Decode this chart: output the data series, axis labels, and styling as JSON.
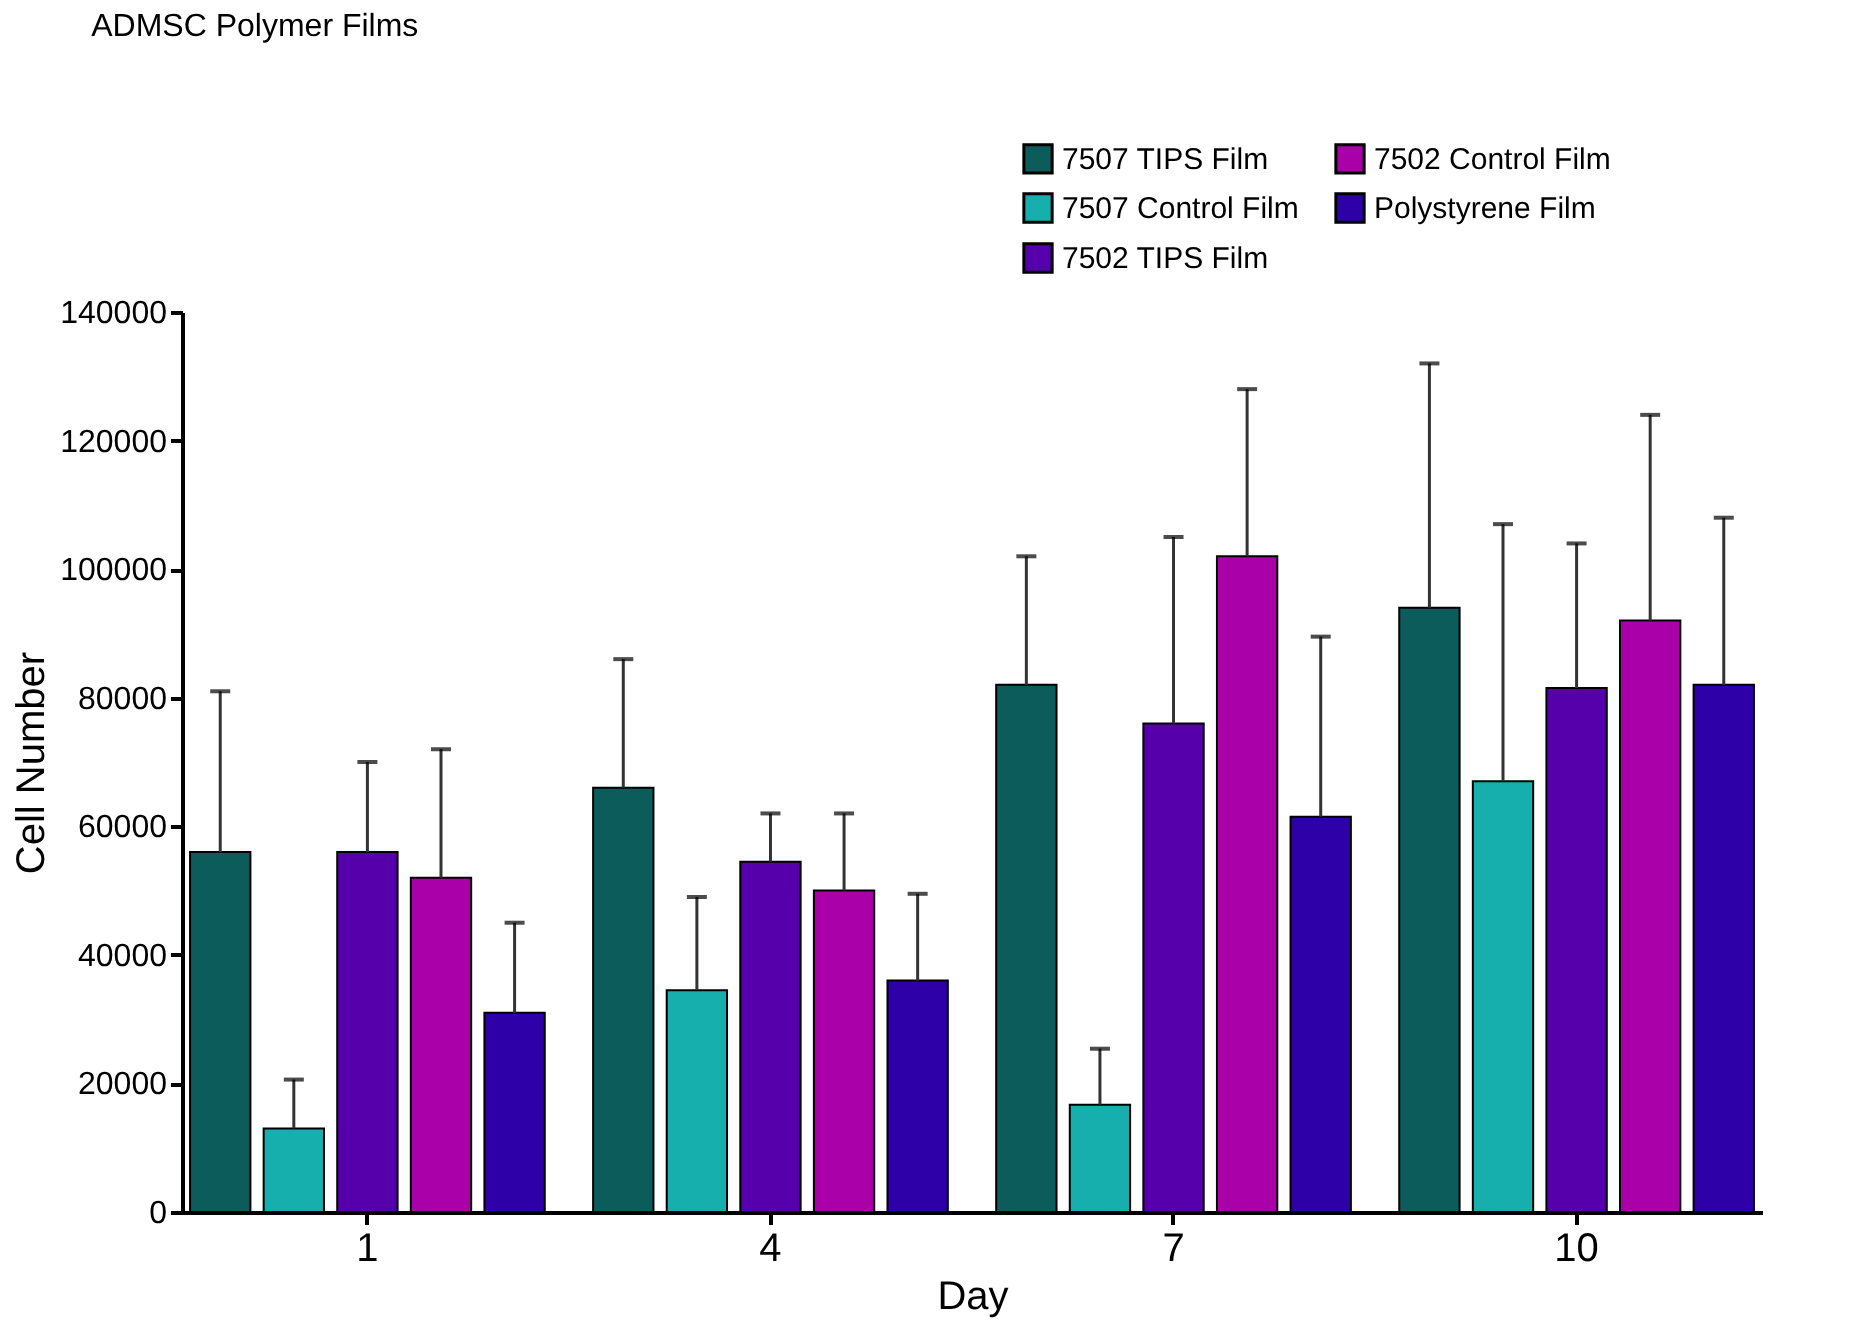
{
  "chart_data": {
    "type": "bar",
    "title": "ADMSC Polymer Films",
    "xlabel": "Day",
    "ylabel": "Cell Number",
    "categories": [
      "1",
      "4",
      "7",
      "10"
    ],
    "series": [
      {
        "name": "7507 TIPS Film",
        "color": "#0d5c5c",
        "values": [
          56000,
          66000,
          82000,
          94000
        ],
        "errors": [
          [
            56000,
            81000
          ],
          [
            66000,
            86000
          ],
          [
            82000,
            102000
          ],
          [
            94000,
            132000
          ]
        ]
      },
      {
        "name": "7507 Control Film",
        "color": "#17aeae",
        "values": [
          13000,
          34500,
          16700,
          67000
        ],
        "errors": [
          [
            13000,
            20600
          ],
          [
            34500,
            49000
          ],
          [
            16700,
            25400
          ],
          [
            67000,
            107000
          ]
        ]
      },
      {
        "name": "7502 TIPS Film",
        "color": "#5500aa",
        "values": [
          56000,
          54500,
          76000,
          81500
        ],
        "errors": [
          [
            56000,
            70000
          ],
          [
            54500,
            62000
          ],
          [
            76000,
            105000
          ],
          [
            81500,
            104000
          ]
        ]
      },
      {
        "name": "7502 Control Film",
        "color": "#aa00aa",
        "values": [
          52000,
          50000,
          102000,
          92000
        ],
        "errors": [
          [
            52000,
            72000
          ],
          [
            50000,
            62000
          ],
          [
            102000,
            128000
          ],
          [
            92000,
            124000
          ]
        ]
      },
      {
        "name": "Polystyrene Film",
        "color": "#2e00a8",
        "values": [
          31000,
          36000,
          61500,
          82000
        ],
        "errors": [
          [
            31000,
            45000
          ],
          [
            36000,
            49500
          ],
          [
            61500,
            89500
          ],
          [
            82000,
            108000
          ]
        ]
      }
    ],
    "ylim": [
      0,
      140000
    ],
    "yticks": [
      0,
      20000,
      40000,
      60000,
      80000,
      100000,
      120000,
      140000
    ],
    "grid": false,
    "legend": "top right"
  }
}
